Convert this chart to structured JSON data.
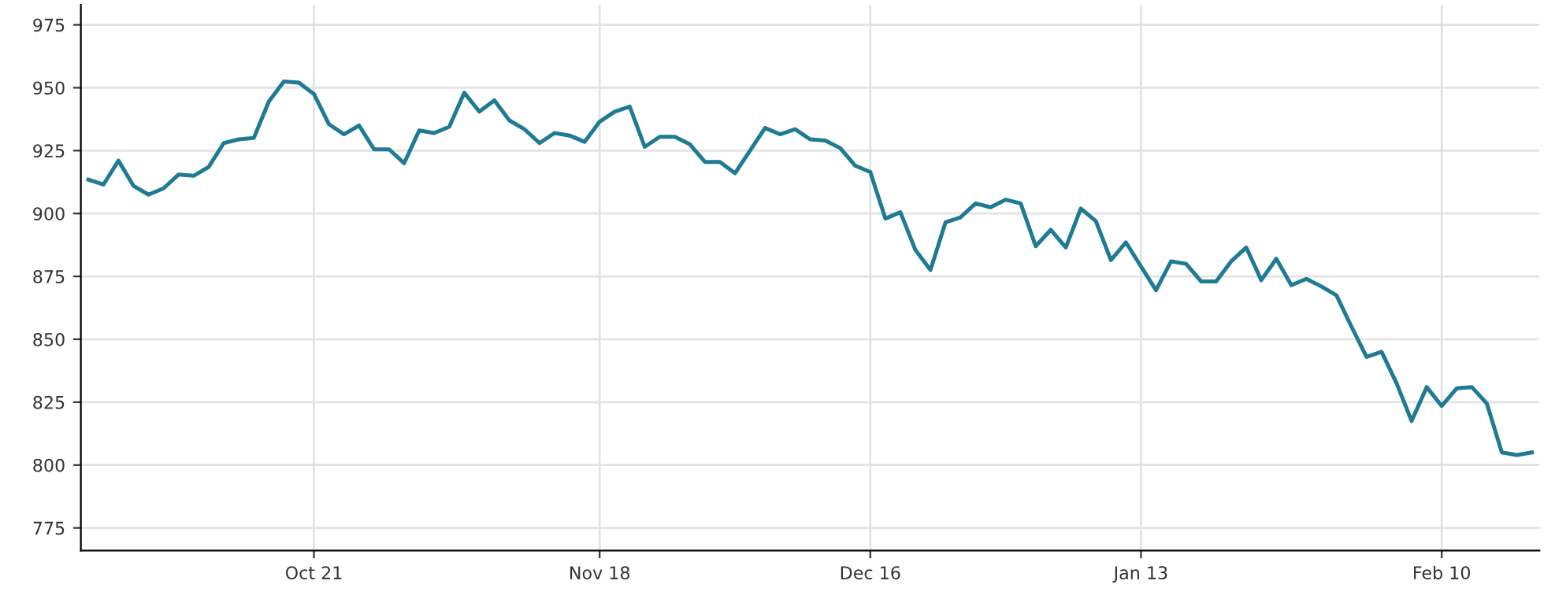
{
  "chart_data": {
    "type": "line",
    "categories": [
      null,
      null,
      null,
      null,
      null,
      null,
      null,
      null,
      null,
      null,
      null,
      null,
      null,
      null,
      null,
      "Oct 21",
      null,
      null,
      null,
      null,
      null,
      null,
      null,
      null,
      null,
      null,
      null,
      null,
      null,
      null,
      null,
      null,
      null,
      null,
      "Nov 18",
      null,
      null,
      null,
      null,
      null,
      null,
      null,
      null,
      null,
      null,
      null,
      null,
      null,
      null,
      null,
      null,
      null,
      "Dec 16",
      null,
      null,
      null,
      null,
      null,
      null,
      null,
      null,
      null,
      null,
      null,
      null,
      null,
      null,
      null,
      null,
      null,
      "Jan 13",
      null,
      null,
      null,
      null,
      null,
      null,
      null,
      null,
      null,
      null,
      null,
      null,
      null,
      null,
      null,
      null,
      null,
      null,
      null,
      "Feb 10",
      null,
      null,
      null,
      null,
      null,
      null
    ],
    "series": [
      {
        "color": "#1f7a94",
        "values": [
          913.5,
          911.5,
          921,
          911,
          907.5,
          910,
          915.5,
          915,
          918.5,
          928,
          929.5,
          930,
          944.5,
          952.5,
          952,
          947.5,
          935.5,
          931.5,
          935,
          925.5,
          925.5,
          920,
          933,
          932,
          934.5,
          948,
          940.5,
          945,
          937,
          933.5,
          928,
          932,
          931,
          928.5,
          936.5,
          940.5,
          942.5,
          926.5,
          930.5,
          930.5,
          927.5,
          920.5,
          920.5,
          916,
          925,
          934,
          931.5,
          933.5,
          929.5,
          929,
          926,
          919,
          916.5,
          898,
          900.5,
          885.5,
          877.5,
          896.5,
          898.5,
          904,
          902.5,
          905.5,
          904,
          887,
          893.5,
          886.5,
          902,
          897,
          881.5,
          888.5,
          879,
          869.5,
          881,
          880,
          873,
          873,
          881,
          886.5,
          873.5,
          882,
          871.5,
          874,
          871,
          867.5,
          855,
          843,
          845,
          832.5,
          817.5,
          831,
          823.5,
          830.5,
          831,
          824.5,
          805,
          804,
          805
        ]
      }
    ],
    "ylim": [
      766,
      983
    ],
    "yticks": [
      775,
      800,
      825,
      850,
      875,
      900,
      925,
      950,
      975
    ],
    "grid": true,
    "marker": "none",
    "line_style": "solid",
    "legend": false
  }
}
